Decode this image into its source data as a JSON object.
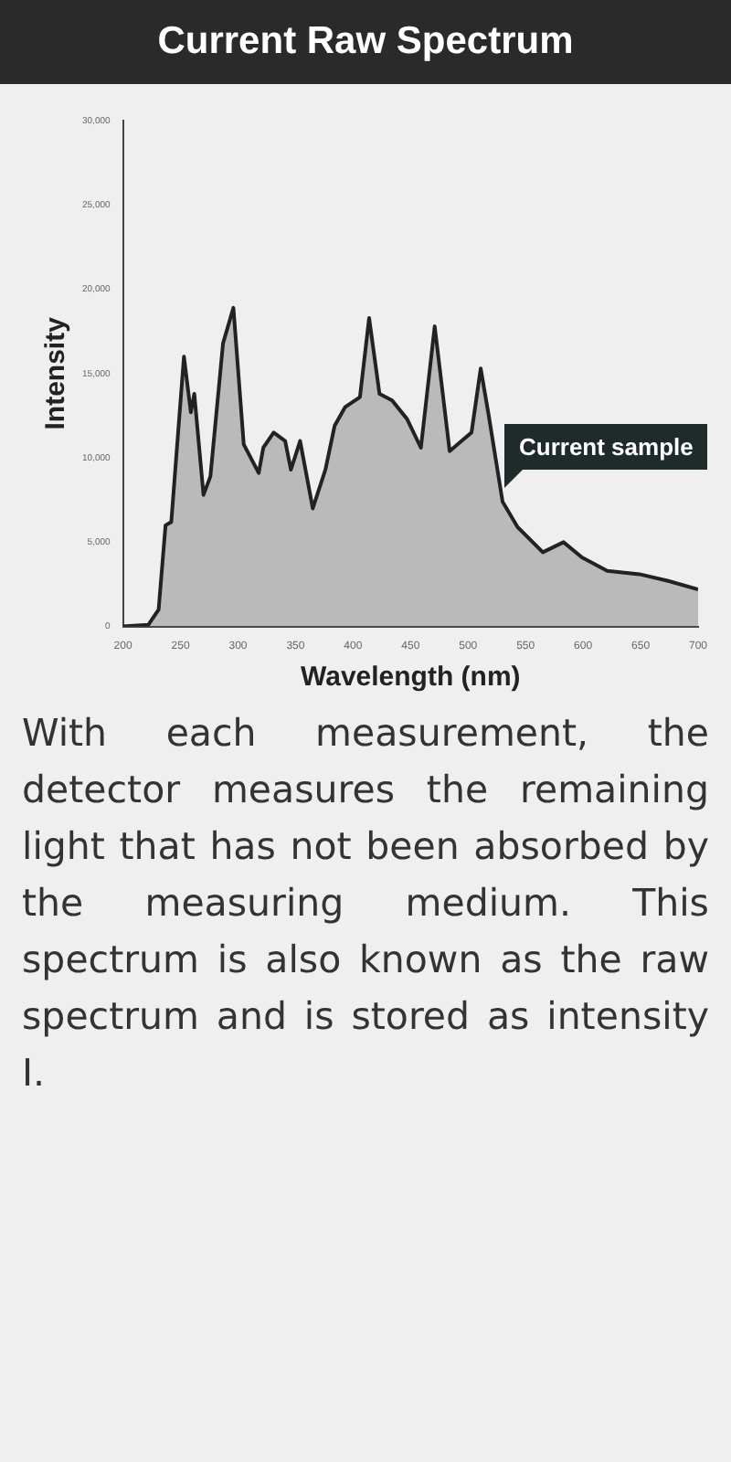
{
  "chart_data": {
    "type": "area",
    "title": "Current Raw Spectrum",
    "xlabel": "Wavelength (nm)",
    "ylabel": "Intensity",
    "x": [
      200,
      222,
      231,
      237,
      242,
      253,
      259,
      262,
      270,
      276,
      287,
      296,
      305,
      318,
      322,
      331,
      341,
      346,
      354,
      365,
      376,
      384,
      393,
      406,
      414,
      423,
      434,
      447,
      459,
      471,
      484,
      503,
      511,
      518,
      530,
      543,
      565,
      583,
      599,
      621,
      649,
      674,
      700
    ],
    "series": [
      {
        "color": "#222222",
        "values": [
          0,
          100,
          1000,
          6000,
          6200,
          16000,
          12700,
          13800,
          7800,
          8900,
          16800,
          18900,
          10800,
          9100,
          10600,
          11500,
          11000,
          9300,
          11000,
          7000,
          9300,
          11900,
          13000,
          13600,
          18300,
          13800,
          13400,
          12300,
          10600,
          17800,
          10400,
          11500,
          15300,
          12500,
          7400,
          5900,
          4400,
          5000,
          4100,
          3300,
          3100,
          2700,
          2200
        ]
      }
    ],
    "xlim": [
      200,
      700
    ],
    "xticks": [
      200,
      250,
      300,
      350,
      400,
      450,
      500,
      550,
      600,
      650,
      700
    ],
    "ylim": [
      0,
      30000
    ],
    "yticks": [
      {
        "value": 0,
        "label": "0"
      },
      {
        "value": 5000,
        "label": "5,000"
      },
      {
        "value": 10000,
        "label": "10,000"
      },
      {
        "value": 15000,
        "label": "15,000"
      },
      {
        "value": 20000,
        "label": "20,000"
      },
      {
        "value": 25000,
        "label": "25,000"
      },
      {
        "value": 30000,
        "label": "30,000"
      }
    ],
    "grid": false,
    "legend": false,
    "marker": "none",
    "annotations": [
      "Current sample",
      "With each measurement, the detector measures the remaining light that has not been absorbed by the measuring medium. This spectrum is also known as the raw spectrum and is stored as intensity I."
    ]
  }
}
